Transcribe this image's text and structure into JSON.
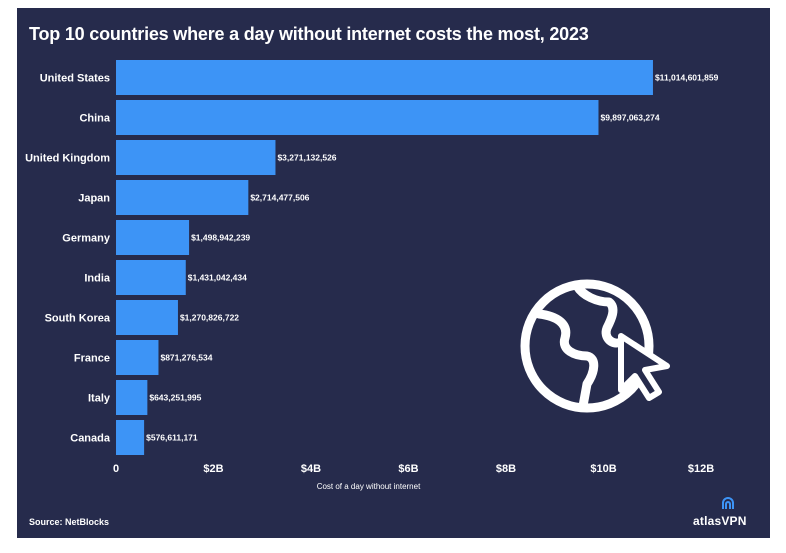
{
  "chart_data": {
    "type": "bar",
    "orientation": "horizontal",
    "title": "Top 10 countries where a day without internet costs the most, 2023",
    "categories": [
      "United States",
      "China",
      "United Kingdom",
      "Japan",
      "Germany",
      "India",
      "South Korea",
      "France",
      "Italy",
      "Canada"
    ],
    "values": [
      11014601859,
      9897063274,
      3271132526,
      2714477506,
      1498942239,
      1431042434,
      1270826722,
      871276534,
      643251995,
      576611171
    ],
    "value_labels": [
      "$11,014,601,859",
      "$9,897,063,274",
      "$3,271,132,526",
      "$2,714,477,506",
      "$1,498,942,239",
      "$1,431,042,434",
      "$1,270,826,722",
      "$871,276,534",
      "$643,251,995",
      "$576,611,171"
    ],
    "xlabel": "Cost of a day without internet",
    "xlim": [
      0,
      12000000000
    ],
    "xticks": [
      0,
      2000000000,
      4000000000,
      6000000000,
      8000000000,
      10000000000,
      12000000000
    ],
    "xtick_labels": [
      "0",
      "$2B",
      "$4B",
      "$6B",
      "$8B",
      "$10B",
      "$12B"
    ],
    "grid": false,
    "bar_color": "#3d94f6"
  },
  "footer": {
    "source": "Source: NetBlocks",
    "brand": "atlasVPN"
  },
  "colors": {
    "background": "#262b4c",
    "text": "#ffffff",
    "bar": "#3d94f6"
  },
  "decoration": {
    "icon": "globe-cursor-icon"
  }
}
